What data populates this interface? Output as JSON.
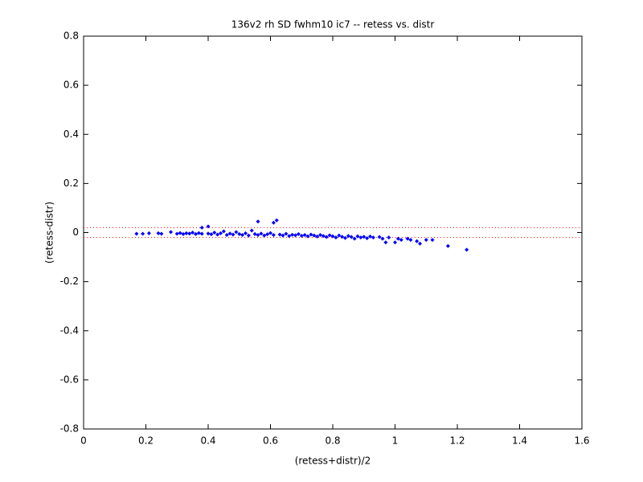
{
  "chart_data": {
    "type": "scatter",
    "title": "136v2 rh SD fwhm10 ic7 -- retess vs. distr",
    "x_label": "(retess+distr)/2",
    "y_label": "(retess-distr)",
    "xlim": [
      0,
      1.6
    ],
    "ylim": [
      -0.8,
      0.8
    ],
    "xticks": [
      0,
      0.2,
      0.4,
      0.6,
      0.8,
      1,
      1.2,
      1.4,
      1.6
    ],
    "yticks": [
      -0.8,
      -0.6,
      -0.4,
      -0.2,
      0,
      0.2,
      0.4,
      0.6,
      0.8
    ],
    "hlines": {
      "values": [
        0.02,
        -0.02
      ],
      "color": "#ff0000"
    },
    "marker": "diamond",
    "x": [
      0.17,
      0.19,
      0.21,
      0.24,
      0.25,
      0.28,
      0.3,
      0.31,
      0.32,
      0.33,
      0.34,
      0.35,
      0.36,
      0.37,
      0.38,
      0.38,
      0.4,
      0.4,
      0.41,
      0.42,
      0.43,
      0.44,
      0.45,
      0.46,
      0.47,
      0.48,
      0.49,
      0.5,
      0.51,
      0.52,
      0.53,
      0.54,
      0.55,
      0.56,
      0.56,
      0.57,
      0.58,
      0.59,
      0.6,
      0.61,
      0.61,
      0.62,
      0.63,
      0.64,
      0.65,
      0.66,
      0.67,
      0.68,
      0.69,
      0.7,
      0.71,
      0.72,
      0.73,
      0.74,
      0.75,
      0.76,
      0.77,
      0.78,
      0.79,
      0.8,
      0.81,
      0.82,
      0.83,
      0.84,
      0.85,
      0.86,
      0.87,
      0.88,
      0.89,
      0.9,
      0.91,
      0.92,
      0.93,
      0.95,
      0.96,
      0.97,
      0.98,
      1.0,
      1.01,
      1.02,
      1.04,
      1.05,
      1.07,
      1.08,
      1.1,
      1.12,
      1.17,
      1.23
    ],
    "series": [
      {
        "color": "#0000ff",
        "values": [
          -0.005,
          -0.005,
          -0.003,
          -0.003,
          -0.005,
          0.002,
          -0.005,
          -0.002,
          -0.006,
          -0.003,
          -0.004,
          0,
          -0.006,
          -0.002,
          0.02,
          -0.005,
          0.025,
          -0.004,
          -0.007,
          0,
          -0.008,
          -0.003,
          0.005,
          -0.01,
          -0.004,
          -0.008,
          0.002,
          -0.006,
          -0.01,
          -0.003,
          -0.012,
          0.008,
          -0.006,
          0.045,
          -0.01,
          -0.004,
          -0.012,
          -0.007,
          -0.002,
          0.04,
          -0.01,
          0.05,
          -0.008,
          -0.012,
          -0.005,
          -0.014,
          -0.009,
          -0.011,
          -0.006,
          -0.013,
          -0.01,
          -0.015,
          -0.008,
          -0.012,
          -0.016,
          -0.01,
          -0.014,
          -0.018,
          -0.011,
          -0.015,
          -0.02,
          -0.012,
          -0.017,
          -0.022,
          -0.014,
          -0.018,
          -0.025,
          -0.015,
          -0.02,
          -0.017,
          -0.023,
          -0.016,
          -0.02,
          -0.018,
          -0.025,
          -0.04,
          -0.02,
          -0.04,
          -0.025,
          -0.03,
          -0.025,
          -0.03,
          -0.035,
          -0.045,
          -0.03,
          -0.03,
          -0.055,
          -0.07
        ]
      }
    ]
  }
}
